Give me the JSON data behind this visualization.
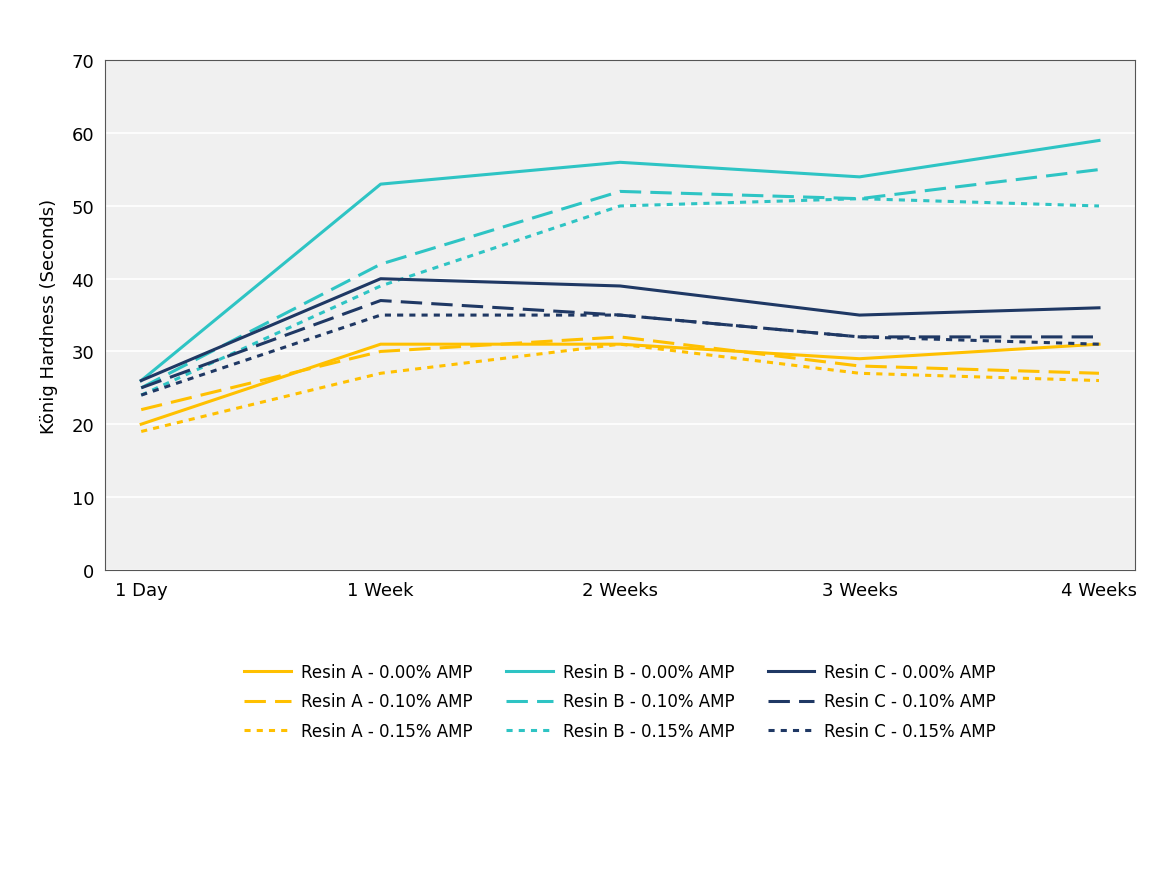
{
  "x_labels": [
    "1 Day",
    "1 Week",
    "2 Weeks",
    "3 Weeks",
    "4 Weeks"
  ],
  "x_positions": [
    0,
    1,
    2,
    3,
    4
  ],
  "series": [
    {
      "label": "Resin A - 0.00% AMP",
      "color": "#FFC000",
      "linestyle": "solid",
      "linewidth": 2.2,
      "values": [
        20,
        31,
        31,
        29,
        31
      ]
    },
    {
      "label": "Resin A - 0.10% AMP",
      "color": "#FFC000",
      "linestyle": "dashed",
      "linewidth": 2.2,
      "values": [
        22,
        30,
        32,
        28,
        27
      ]
    },
    {
      "label": "Resin A - 0.15% AMP",
      "color": "#FFC000",
      "linestyle": "dotted",
      "linewidth": 2.2,
      "values": [
        19,
        27,
        31,
        27,
        26
      ]
    },
    {
      "label": "Resin B - 0.00% AMP",
      "color": "#2EC4C4",
      "linestyle": "solid",
      "linewidth": 2.2,
      "values": [
        26,
        53,
        56,
        54,
        59
      ]
    },
    {
      "label": "Resin B - 0.10% AMP",
      "color": "#2EC4C4",
      "linestyle": "dashed",
      "linewidth": 2.2,
      "values": [
        25,
        42,
        52,
        51,
        55
      ]
    },
    {
      "label": "Resin B - 0.15% AMP",
      "color": "#2EC4C4",
      "linestyle": "dotted",
      "linewidth": 2.2,
      "values": [
        24,
        39,
        50,
        51,
        50
      ]
    },
    {
      "label": "Resin C - 0.00% AMP",
      "color": "#1F3864",
      "linestyle": "solid",
      "linewidth": 2.2,
      "values": [
        26,
        40,
        39,
        35,
        36
      ]
    },
    {
      "label": "Resin C - 0.10% AMP",
      "color": "#1F3864",
      "linestyle": "dashed",
      "linewidth": 2.2,
      "values": [
        25,
        37,
        35,
        32,
        32
      ]
    },
    {
      "label": "Resin C - 0.15% AMP",
      "color": "#1F3864",
      "linestyle": "dotted",
      "linewidth": 2.2,
      "values": [
        24,
        35,
        35,
        32,
        31
      ]
    }
  ],
  "ylabel": "König Hardness (Seconds)",
  "ylim": [
    0,
    70
  ],
  "yticks": [
    0,
    10,
    20,
    30,
    40,
    50,
    60,
    70
  ],
  "background_color": "#ffffff",
  "plot_bg_color": "#f0f0f0",
  "grid_color": "#ffffff",
  "axis_fontsize": 13,
  "tick_fontsize": 13,
  "legend_fontsize": 12
}
